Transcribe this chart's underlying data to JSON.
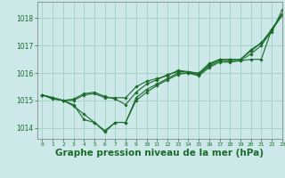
{
  "bg_color": "#cce8e8",
  "grid_color": "#99ccbb",
  "line_color": "#1a6b2a",
  "xlabel": "Graphe pression niveau de la mer (hPa)",
  "xlabel_fontsize": 7.5,
  "xlim": [
    -0.5,
    23
  ],
  "ylim": [
    1013.6,
    1018.6
  ],
  "yticks": [
    1014,
    1015,
    1016,
    1017,
    1018
  ],
  "xticks": [
    0,
    1,
    2,
    3,
    4,
    5,
    6,
    7,
    8,
    9,
    10,
    11,
    12,
    13,
    14,
    15,
    16,
    17,
    18,
    19,
    20,
    21,
    22,
    23
  ],
  "series": [
    [
      1015.2,
      1015.1,
      1015.0,
      1014.8,
      1014.5,
      1014.2,
      1013.85,
      1014.2,
      1014.2,
      1015.1,
      1015.4,
      1015.6,
      1015.8,
      1016.0,
      1016.0,
      1015.95,
      1016.3,
      1016.5,
      1016.5,
      1016.5,
      1016.8,
      1017.1,
      1017.5,
      1018.3
    ],
    [
      1015.2,
      1015.1,
      1015.0,
      1014.85,
      1014.3,
      1014.2,
      1013.9,
      1014.2,
      1014.2,
      1015.0,
      1015.3,
      1015.55,
      1015.75,
      1015.95,
      1016.0,
      1015.9,
      1016.2,
      1016.4,
      1016.4,
      1016.45,
      1016.5,
      1016.5,
      1017.6,
      1018.15
    ],
    [
      1015.2,
      1015.1,
      1015.0,
      1015.0,
      1015.2,
      1015.25,
      1015.1,
      1015.1,
      1015.1,
      1015.5,
      1015.7,
      1015.8,
      1015.9,
      1016.1,
      1016.05,
      1016.0,
      1016.35,
      1016.5,
      1016.5,
      1016.5,
      1016.85,
      1017.1,
      1017.6,
      1018.15
    ],
    [
      1015.2,
      1015.05,
      1015.0,
      1015.05,
      1015.25,
      1015.3,
      1015.15,
      1015.05,
      1014.85,
      1015.3,
      1015.6,
      1015.75,
      1015.95,
      1016.05,
      1016.05,
      1015.95,
      1016.25,
      1016.45,
      1016.45,
      1016.45,
      1016.7,
      1017.0,
      1017.55,
      1018.1
    ]
  ]
}
